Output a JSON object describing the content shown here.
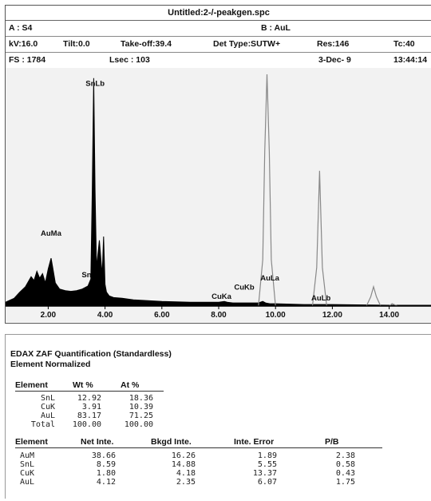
{
  "window": {
    "title": "Untitled:2-/-peakgen.spc",
    "row1": {
      "a": "A : S4",
      "b": "B : AuL"
    },
    "row2": {
      "kv": "kV:16.0",
      "tilt": "Tilt:0.0",
      "takeoff": "Take-off:39.4",
      "det": "Det Type:SUTW+",
      "res": "Res:146",
      "tc": "Tc:40"
    },
    "row3": {
      "fs": "FS : 1784",
      "lsec": "Lsec : 103",
      "date": "3-Dec- 9",
      "time": "13:44:14"
    }
  },
  "chart_data": {
    "type": "line",
    "xlabel": "",
    "ylabel": "",
    "xlim": [
      0.5,
      15.5
    ],
    "x_ticks": [
      "2.00",
      "4.00",
      "6.00",
      "8.00",
      "10.00",
      "12.00",
      "14.00"
    ],
    "series": [
      {
        "style": "filled-black",
        "x": [
          0.5,
          0.8,
          1.0,
          1.2,
          1.4,
          1.5,
          1.6,
          1.7,
          1.8,
          1.9,
          2.0,
          2.1,
          2.15,
          2.25,
          2.4,
          2.6,
          2.8,
          3.0,
          3.2,
          3.4,
          3.5,
          3.55,
          3.6,
          3.65,
          3.7,
          3.8,
          3.9,
          3.95,
          4.0,
          4.05,
          4.15,
          4.3,
          4.6,
          5.0,
          5.5,
          6.0,
          7.0,
          8.0,
          8.2,
          8.3,
          8.5,
          9.0,
          9.4,
          9.55,
          9.65,
          9.8,
          10.0,
          11.0,
          12.0,
          14.0,
          15.5
        ],
        "y": [
          5,
          10,
          18,
          25,
          38,
          33,
          45,
          36,
          42,
          30,
          48,
          62,
          52,
          30,
          22,
          20,
          19,
          20,
          22,
          26,
          35,
          150,
          295,
          150,
          50,
          85,
          40,
          90,
          28,
          18,
          13,
          11,
          10,
          8,
          7,
          6,
          5,
          5,
          6,
          5,
          4,
          4,
          4,
          6,
          4,
          3,
          3,
          2,
          2,
          1,
          1
        ]
      },
      {
        "style": "outline",
        "x": [
          9.4,
          9.55,
          9.62,
          9.7,
          9.78,
          9.85,
          10.0,
          11.3,
          11.45,
          11.55,
          11.65,
          11.8,
          13.2,
          13.35,
          13.45,
          13.55,
          13.7,
          14.0,
          14.1,
          14.3
        ],
        "y": [
          0,
          60,
          200,
          300,
          200,
          60,
          0,
          0,
          50,
          175,
          50,
          0,
          0,
          12,
          25,
          12,
          0,
          0,
          3,
          0
        ]
      }
    ],
    "peak_labels": [
      {
        "text": "SnLb",
        "x": 3.65,
        "y": 282
      },
      {
        "text": "AuMa",
        "x": 2.1,
        "y": 88
      },
      {
        "text": "Sn",
        "x": 3.35,
        "y": 34
      },
      {
        "text": "CuKa",
        "x": 8.1,
        "y": 6
      },
      {
        "text": "CuKb",
        "x": 8.9,
        "y": 18
      },
      {
        "text": "AuLa",
        "x": 9.8,
        "y": 30
      },
      {
        "text": "AuLb",
        "x": 11.6,
        "y": 4
      }
    ]
  },
  "report": {
    "title": "EDAX ZAF Quantification (Standardless)",
    "subtitle": "Element Normalized",
    "table1": {
      "headers": [
        "Element",
        "Wt %",
        "At %"
      ],
      "rows": [
        [
          "SnL",
          "12.92",
          "18.36"
        ],
        [
          "CuK",
          "3.91",
          "10.39"
        ],
        [
          "AuL",
          "83.17",
          "71.25"
        ],
        [
          "Total",
          "100.00",
          "100.00"
        ]
      ]
    },
    "table2": {
      "headers": [
        "Element",
        "Net Inte.",
        "Bkgd Inte.",
        "Inte. Error",
        "P/B"
      ],
      "rows": [
        [
          "AuM",
          "38.66",
          "16.26",
          "1.89",
          "2.38"
        ],
        [
          "SnL",
          "8.59",
          "14.88",
          "5.55",
          "0.58"
        ],
        [
          "CuK",
          "1.80",
          "4.18",
          "13.37",
          "0.43"
        ],
        [
          "AuL",
          "4.12",
          "2.35",
          "6.07",
          "1.75"
        ]
      ]
    }
  }
}
